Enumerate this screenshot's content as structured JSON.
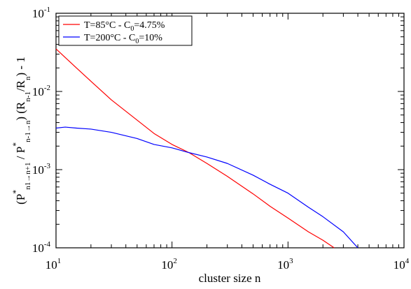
{
  "chart_data": {
    "type": "line",
    "title": "",
    "xlabel": "cluster size n",
    "ylabel": "(P*n1→n+1 / P*n-1→n) (Rn-1/Rn) - 1",
    "xscale": "log",
    "yscale": "log",
    "xlim": [
      10,
      10000
    ],
    "ylim": [
      0.0001,
      0.1
    ],
    "x_ticks": [
      {
        "value": 10,
        "base": "10",
        "exp": "1"
      },
      {
        "value": 100,
        "base": "10",
        "exp": "2"
      },
      {
        "value": 1000,
        "base": "10",
        "exp": "3"
      },
      {
        "value": 10000,
        "base": "10",
        "exp": "4"
      }
    ],
    "y_ticks": [
      {
        "value": 0.0001,
        "base": "10",
        "exp": "-4"
      },
      {
        "value": 0.001,
        "base": "10",
        "exp": "-3"
      },
      {
        "value": 0.01,
        "base": "10",
        "exp": "-2"
      },
      {
        "value": 0.1,
        "base": "10",
        "exp": "-1"
      }
    ],
    "grid": false,
    "legend_position": "top-left",
    "series": [
      {
        "name": "T=85°C - C0=4.75%",
        "color": "#ff0000",
        "x": [
          10,
          15,
          20,
          30,
          50,
          70,
          100,
          140,
          200,
          300,
          500,
          700,
          1000,
          1500,
          2000,
          2500
        ],
        "y": [
          0.035,
          0.02,
          0.0135,
          0.0078,
          0.0043,
          0.0029,
          0.0021,
          0.00165,
          0.0012,
          0.00082,
          0.00049,
          0.00034,
          0.00024,
          0.00016,
          0.000125,
          0.0001
        ]
      },
      {
        "name": "T=200°C - C0=10%",
        "color": "#0000ff",
        "x": [
          10,
          12,
          15,
          20,
          30,
          50,
          70,
          100,
          140,
          200,
          300,
          500,
          700,
          1000,
          1500,
          2000,
          3000,
          4000
        ],
        "y": [
          0.0034,
          0.0035,
          0.0034,
          0.0033,
          0.003,
          0.0025,
          0.0021,
          0.0019,
          0.00165,
          0.00145,
          0.0012,
          0.00085,
          0.00065,
          0.0005,
          0.00033,
          0.00025,
          0.00016,
          0.0001
        ]
      }
    ]
  },
  "legend": {
    "items": [
      {
        "label_main": "T=85°C - C",
        "label_sub": "0",
        "label_tail": "=4.75%",
        "color": "#ff0000"
      },
      {
        "label_main": "T=200°C - C",
        "label_sub": "0",
        "label_tail": "=10%",
        "color": "#0000ff"
      }
    ]
  },
  "ylabel_parts": {
    "open": "(P",
    "star1": "*",
    "sub1": "n1→n+1",
    "mid": " / P",
    "star2": "*",
    "sub2": "n-1→n",
    "middle": ") (R",
    "sub3": "n-1",
    "slash": "/R",
    "sub4": "n",
    "close": ") - 1"
  }
}
